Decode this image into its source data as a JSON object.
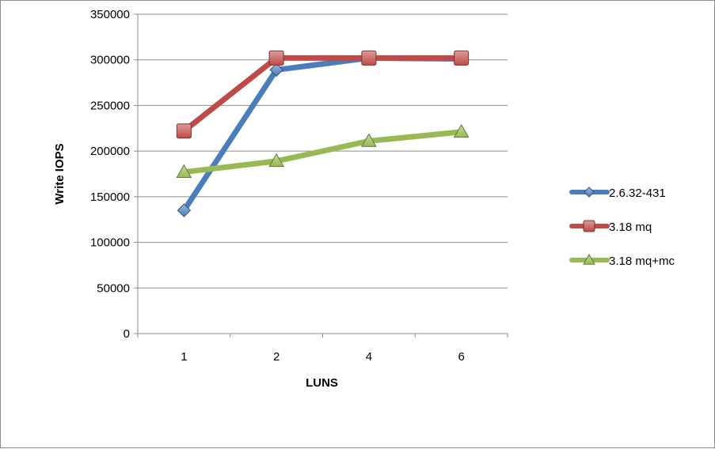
{
  "chart_data": {
    "type": "line",
    "title": "",
    "xlabel": "LUNS",
    "ylabel": "Write IOPS",
    "categories": [
      "1",
      "2",
      "4",
      "6"
    ],
    "ylim": [
      0,
      350000
    ],
    "yticks": [
      "0",
      "50000",
      "100000",
      "150000",
      "200000",
      "250000",
      "300000",
      "350000"
    ],
    "grid": true,
    "legend_position": "right",
    "series": [
      {
        "name": "2.6.32-431",
        "values": [
          135000,
          289000,
          302000,
          301000
        ],
        "color": "#4a7ebb",
        "marker": "diamond"
      },
      {
        "name": "3.18 mq",
        "values": [
          222000,
          302000,
          302000,
          302000
        ],
        "color": "#be4b48",
        "marker": "square"
      },
      {
        "name": "3.18 mq+mc",
        "values": [
          177000,
          189000,
          211000,
          221000
        ],
        "color": "#98b954",
        "marker": "triangle"
      }
    ]
  }
}
